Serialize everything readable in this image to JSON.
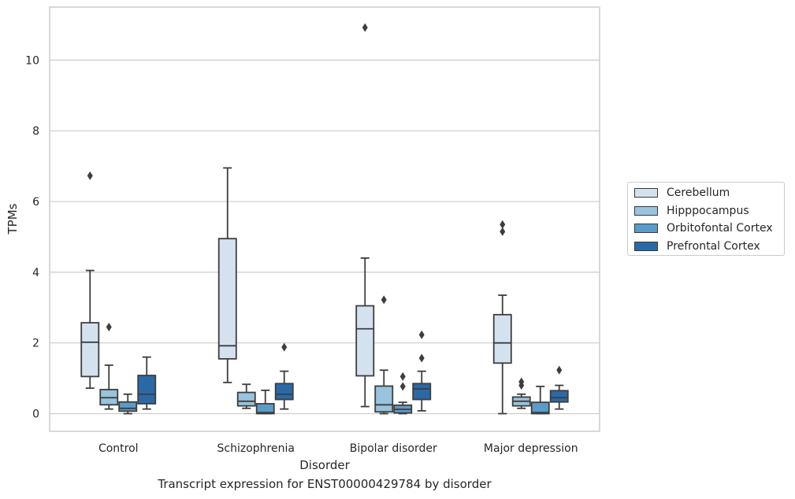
{
  "chart_data": {
    "type": "box",
    "caption": "Transcript expression for ENST00000429784 by disorder",
    "xlabel": "Disorder",
    "ylabel": "TPMs",
    "ylim": [
      -0.5,
      11.5
    ],
    "yticks": [
      0,
      2,
      4,
      6,
      8,
      10
    ],
    "grid": "horizontal",
    "legend_position": "outside-right",
    "categories": [
      "Control",
      "Schizophrenia",
      "Bipolar disorder",
      "Major depression"
    ],
    "series": [
      {
        "name": "Cerebellum",
        "color": "#d4e2f0",
        "boxes": [
          {
            "whislo": 0.72,
            "q1": 1.05,
            "med": 2.02,
            "q3": 2.57,
            "whishi": 4.05,
            "fliers": [
              6.73
            ]
          },
          {
            "whislo": 0.88,
            "q1": 1.55,
            "med": 1.92,
            "q3": 4.95,
            "whishi": 6.95,
            "fliers": []
          },
          {
            "whislo": 0.2,
            "q1": 1.07,
            "med": 2.4,
            "q3": 3.05,
            "whishi": 4.4,
            "fliers": [
              10.92
            ]
          },
          {
            "whislo": 0.0,
            "q1": 1.43,
            "med": 2.0,
            "q3": 2.8,
            "whishi": 3.35,
            "fliers": [
              5.15,
              5.35
            ]
          }
        ]
      },
      {
        "name": "Hipppocampus",
        "color": "#99c3de",
        "boxes": [
          {
            "whislo": 0.13,
            "q1": 0.25,
            "med": 0.45,
            "q3": 0.68,
            "whishi": 1.37,
            "fliers": [
              2.45
            ]
          },
          {
            "whislo": 0.15,
            "q1": 0.22,
            "med": 0.35,
            "q3": 0.6,
            "whishi": 0.83,
            "fliers": []
          },
          {
            "whislo": 0.0,
            "q1": 0.05,
            "med": 0.25,
            "q3": 0.78,
            "whishi": 1.23,
            "fliers": [
              3.22
            ]
          },
          {
            "whislo": 0.15,
            "q1": 0.22,
            "med": 0.35,
            "q3": 0.47,
            "whishi": 0.55,
            "fliers": [
              0.8,
              0.9
            ]
          }
        ]
      },
      {
        "name": "Orbitofontal Cortex",
        "color": "#5b9bc9",
        "boxes": [
          {
            "whislo": 0.0,
            "q1": 0.07,
            "med": 0.15,
            "q3": 0.33,
            "whishi": 0.55,
            "fliers": []
          },
          {
            "whislo": 0.0,
            "q1": 0.0,
            "med": 0.03,
            "q3": 0.28,
            "whishi": 0.66,
            "fliers": []
          },
          {
            "whislo": 0.0,
            "q1": 0.02,
            "med": 0.12,
            "q3": 0.24,
            "whishi": 0.32,
            "fliers": [
              0.77,
              1.05
            ]
          },
          {
            "whislo": 0.0,
            "q1": 0.0,
            "med": 0.03,
            "q3": 0.32,
            "whishi": 0.77,
            "fliers": []
          }
        ]
      },
      {
        "name": "Prefrontal Cortex",
        "color": "#2b69a6",
        "boxes": [
          {
            "whislo": 0.13,
            "q1": 0.28,
            "med": 0.55,
            "q3": 1.08,
            "whishi": 1.6,
            "fliers": []
          },
          {
            "whislo": 0.13,
            "q1": 0.4,
            "med": 0.55,
            "q3": 0.85,
            "whishi": 1.2,
            "fliers": [
              1.88
            ]
          },
          {
            "whislo": 0.08,
            "q1": 0.4,
            "med": 0.7,
            "q3": 0.85,
            "whishi": 1.2,
            "fliers": [
              1.57,
              2.23
            ]
          },
          {
            "whislo": 0.13,
            "q1": 0.33,
            "med": 0.45,
            "q3": 0.65,
            "whishi": 0.8,
            "fliers": [
              1.23
            ]
          }
        ]
      }
    ]
  }
}
